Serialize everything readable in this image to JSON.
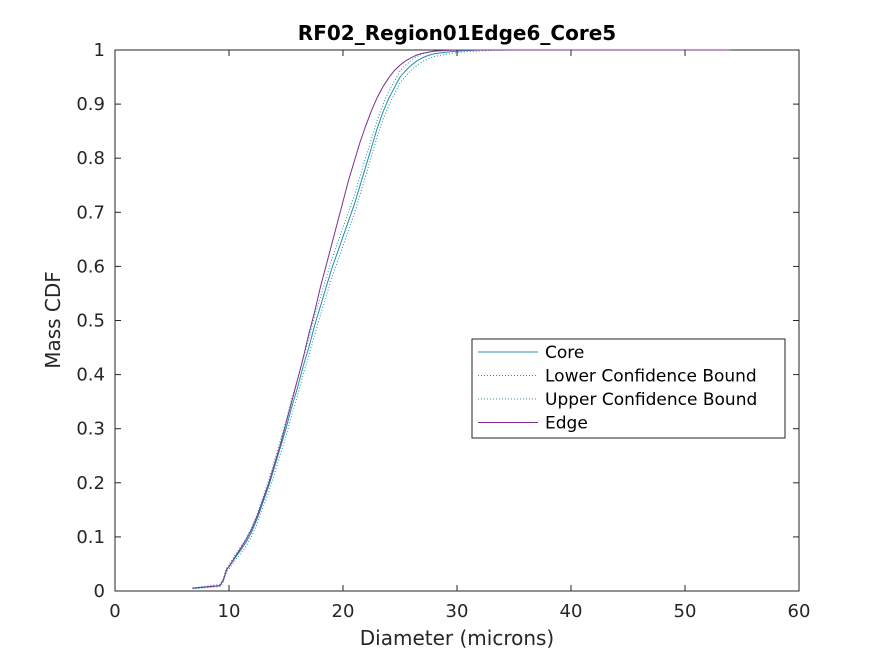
{
  "chart_data": {
    "type": "line",
    "title": "RF02_Region01Edge6_Core5",
    "xlabel": "Diameter (microns)",
    "ylabel": "Mass CDF",
    "xlim": [
      0,
      60
    ],
    "ylim": [
      0,
      1
    ],
    "xticks": [
      0,
      10,
      20,
      30,
      40,
      50,
      60
    ],
    "yticks": [
      0,
      0.1,
      0.2,
      0.3,
      0.4,
      0.5,
      0.6,
      0.7,
      0.8,
      0.9,
      1
    ],
    "xtick_labels": [
      "0",
      "10",
      "20",
      "30",
      "40",
      "50",
      "60"
    ],
    "ytick_labels": [
      "0",
      "0.1",
      "0.2",
      "0.3",
      "0.4",
      "0.5",
      "0.6",
      "0.7",
      "0.8",
      "0.9",
      "1"
    ],
    "grid": false,
    "legend_position": "center-right",
    "series": [
      {
        "name": "Core",
        "color": "#1f8fa6",
        "style": "solid",
        "x": [
          6.8,
          9.2,
          9.5,
          9.8,
          10.0,
          10.5,
          11.0,
          11.5,
          12.0,
          12.5,
          13.0,
          13.5,
          14.0,
          14.5,
          15.0,
          15.5,
          16.0,
          16.5,
          17.0,
          17.5,
          18.0,
          18.5,
          19.0,
          19.5,
          20.0,
          20.5,
          21.0,
          21.5,
          22.0,
          22.5,
          23.0,
          23.5,
          24.0,
          24.5,
          25.0,
          25.5,
          26.0,
          26.5,
          27.0,
          27.5,
          28.0,
          29.0,
          30.0,
          31.0,
          32.0,
          33.0,
          35.0,
          40.0,
          45.0,
          50.0,
          54.0
        ],
        "y": [
          0.005,
          0.01,
          0.02,
          0.04,
          0.045,
          0.06,
          0.075,
          0.09,
          0.11,
          0.135,
          0.165,
          0.195,
          0.23,
          0.265,
          0.3,
          0.34,
          0.375,
          0.415,
          0.45,
          0.49,
          0.525,
          0.56,
          0.595,
          0.625,
          0.655,
          0.685,
          0.715,
          0.75,
          0.785,
          0.82,
          0.855,
          0.885,
          0.91,
          0.93,
          0.95,
          0.962,
          0.972,
          0.98,
          0.986,
          0.99,
          0.993,
          0.996,
          0.998,
          0.999,
          1.0,
          1.0,
          1.0,
          1.0,
          1.0,
          1.0,
          1.0
        ]
      },
      {
        "name": "Lower Confidence Bound",
        "color": "#1f8fa6",
        "style": "dotted",
        "x": [
          6.8,
          9.2,
          9.5,
          9.8,
          10.0,
          10.5,
          11.0,
          11.5,
          12.0,
          12.5,
          13.0,
          13.5,
          14.0,
          14.5,
          15.0,
          15.5,
          16.0,
          16.5,
          17.0,
          17.5,
          18.0,
          18.5,
          19.0,
          19.5,
          20.0,
          20.5,
          21.0,
          21.5,
          22.0,
          22.5,
          23.0,
          23.5,
          24.0,
          24.5,
          25.0,
          25.5,
          26.0,
          26.5,
          27.0,
          27.5,
          28.0,
          29.0,
          30.0,
          31.0,
          32.0,
          33.0,
          35.0,
          40.0,
          45.0,
          50.0,
          54.0
        ],
        "y": [
          0.004,
          0.008,
          0.017,
          0.036,
          0.041,
          0.055,
          0.069,
          0.083,
          0.102,
          0.126,
          0.155,
          0.184,
          0.218,
          0.252,
          0.286,
          0.325,
          0.36,
          0.4,
          0.434,
          0.473,
          0.508,
          0.543,
          0.578,
          0.608,
          0.638,
          0.668,
          0.698,
          0.733,
          0.768,
          0.804,
          0.84,
          0.871,
          0.897,
          0.918,
          0.939,
          0.952,
          0.963,
          0.972,
          0.979,
          0.984,
          0.988,
          0.992,
          0.995,
          0.997,
          0.998,
          0.999,
          1.0,
          1.0,
          1.0,
          1.0,
          1.0
        ]
      },
      {
        "name": "Upper Confidence Bound",
        "color": "#1f8fa6",
        "style": "dotted",
        "x": [
          6.8,
          9.2,
          9.5,
          9.8,
          10.0,
          10.5,
          11.0,
          11.5,
          12.0,
          12.5,
          13.0,
          13.5,
          14.0,
          14.5,
          15.0,
          15.5,
          16.0,
          16.5,
          17.0,
          17.5,
          18.0,
          18.5,
          19.0,
          19.5,
          20.0,
          20.5,
          21.0,
          21.5,
          22.0,
          22.5,
          23.0,
          23.5,
          24.0,
          24.5,
          25.0,
          25.5,
          26.0,
          26.5,
          27.0,
          27.5,
          28.0,
          29.0,
          30.0,
          31.0,
          32.0,
          33.0,
          35.0,
          40.0,
          45.0,
          50.0,
          54.0
        ],
        "y": [
          0.006,
          0.012,
          0.023,
          0.044,
          0.049,
          0.065,
          0.081,
          0.097,
          0.118,
          0.144,
          0.175,
          0.206,
          0.242,
          0.278,
          0.314,
          0.355,
          0.39,
          0.43,
          0.466,
          0.507,
          0.542,
          0.577,
          0.612,
          0.642,
          0.672,
          0.702,
          0.732,
          0.767,
          0.802,
          0.836,
          0.87,
          0.899,
          0.923,
          0.942,
          0.961,
          0.972,
          0.981,
          0.988,
          0.993,
          0.996,
          0.998,
          1.0,
          1.0,
          1.0,
          1.0,
          1.0,
          1.0,
          1.0,
          1.0,
          1.0,
          1.0
        ]
      },
      {
        "name": "Edge",
        "color": "#7e2f8e",
        "style": "solid",
        "x": [
          6.8,
          9.2,
          9.5,
          9.8,
          10.0,
          10.5,
          11.0,
          11.5,
          12.0,
          12.5,
          13.0,
          13.5,
          14.0,
          14.5,
          15.0,
          15.5,
          16.0,
          16.5,
          17.0,
          17.5,
          18.0,
          18.5,
          19.0,
          19.5,
          20.0,
          20.5,
          21.0,
          21.5,
          22.0,
          22.5,
          23.0,
          23.5,
          24.0,
          24.5,
          25.0,
          25.5,
          26.0,
          26.5,
          27.0,
          27.5,
          28.0,
          29.0,
          30.0,
          31.0,
          32.0,
          33.0,
          35.0,
          40.0,
          45.0,
          50.0,
          54.0
        ],
        "y": [
          0.005,
          0.01,
          0.02,
          0.04,
          0.045,
          0.062,
          0.078,
          0.095,
          0.115,
          0.14,
          0.17,
          0.2,
          0.235,
          0.27,
          0.31,
          0.35,
          0.39,
          0.43,
          0.475,
          0.515,
          0.56,
          0.6,
          0.64,
          0.68,
          0.72,
          0.76,
          0.795,
          0.83,
          0.86,
          0.888,
          0.912,
          0.932,
          0.948,
          0.962,
          0.972,
          0.98,
          0.986,
          0.991,
          0.994,
          0.996,
          0.998,
          0.999,
          1.0,
          1.0,
          1.0,
          1.0,
          1.0,
          1.0,
          1.0,
          1.0,
          1.0
        ]
      }
    ]
  }
}
